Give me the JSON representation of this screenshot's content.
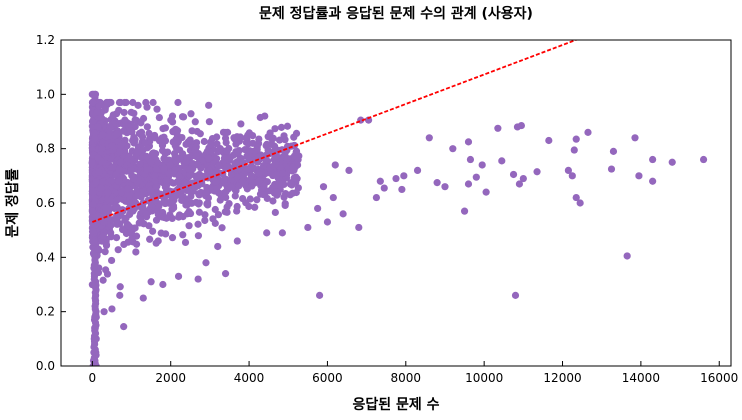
{
  "chart_data": {
    "type": "scatter",
    "title": "문제 정답률과 응답된 문제 수의 관계 (사용자)",
    "xlabel": "응답된 문제 수",
    "ylabel": "문제 정답률",
    "xlim": [
      -800,
      16300
    ],
    "ylim": [
      0.0,
      1.2
    ],
    "xticks": [
      0,
      2000,
      4000,
      6000,
      8000,
      10000,
      12000,
      14000,
      16000
    ],
    "yticks": [
      0.0,
      0.2,
      0.4,
      0.6,
      0.8,
      1.0,
      1.2
    ],
    "ytick_labels": [
      "0.0",
      "0.2",
      "0.4",
      "0.6",
      "0.8",
      "1.0",
      "1.2"
    ],
    "grid": false,
    "colors": {
      "points": "#9467bd",
      "trendline": "#ff0000"
    },
    "trendline": {
      "style": "dashed",
      "intercept": 0.53,
      "slope": 5.43e-05
    },
    "points_dense_region": {
      "x_range": [
        0,
        5500
      ],
      "y_range": [
        0.0,
        1.0
      ]
    },
    "points": [
      [
        5800,
        0.26
      ],
      [
        10800,
        0.26
      ],
      [
        13650,
        0.405
      ],
      [
        800,
        0.145
      ],
      [
        4400,
        0.92
      ],
      [
        6850,
        0.905
      ],
      [
        7050,
        0.905
      ],
      [
        10850,
        0.88
      ],
      [
        10950,
        0.885
      ],
      [
        10350,
        0.875
      ],
      [
        12650,
        0.86
      ],
      [
        13850,
        0.84
      ],
      [
        12350,
        0.835
      ],
      [
        8600,
        0.84
      ],
      [
        9200,
        0.8
      ],
      [
        9600,
        0.825
      ],
      [
        11650,
        0.83
      ],
      [
        13300,
        0.79
      ],
      [
        12300,
        0.795
      ],
      [
        14800,
        0.75
      ],
      [
        15600,
        0.76
      ],
      [
        14300,
        0.76
      ],
      [
        13950,
        0.7
      ],
      [
        14300,
        0.68
      ],
      [
        13250,
        0.725
      ],
      [
        12250,
        0.7
      ],
      [
        12150,
        0.72
      ],
      [
        11350,
        0.715
      ],
      [
        11000,
        0.69
      ],
      [
        10900,
        0.67
      ],
      [
        10750,
        0.705
      ],
      [
        10450,
        0.755
      ],
      [
        9950,
        0.74
      ],
      [
        9650,
        0.76
      ],
      [
        9800,
        0.695
      ],
      [
        10050,
        0.64
      ],
      [
        9600,
        0.67
      ],
      [
        9500,
        0.57
      ],
      [
        9000,
        0.66
      ],
      [
        8800,
        0.675
      ],
      [
        8300,
        0.72
      ],
      [
        7950,
        0.7
      ],
      [
        7900,
        0.65
      ],
      [
        7750,
        0.69
      ],
      [
        7450,
        0.655
      ],
      [
        7350,
        0.68
      ],
      [
        7250,
        0.62
      ],
      [
        12350,
        0.62
      ],
      [
        12450,
        0.6
      ],
      [
        6550,
        0.72
      ],
      [
        6400,
        0.56
      ],
      [
        6150,
        0.62
      ],
      [
        6200,
        0.74
      ],
      [
        5900,
        0.66
      ],
      [
        5750,
        0.58
      ],
      [
        6800,
        0.51
      ],
      [
        6000,
        0.53
      ],
      [
        5500,
        0.51
      ],
      [
        4850,
        0.49
      ],
      [
        4450,
        0.49
      ],
      [
        3700,
        0.46
      ],
      [
        3200,
        0.44
      ],
      [
        2900,
        0.38
      ],
      [
        3400,
        0.34
      ],
      [
        2700,
        0.32
      ],
      [
        2200,
        0.33
      ],
      [
        1800,
        0.3
      ],
      [
        1500,
        0.31
      ],
      [
        1300,
        0.25
      ],
      [
        700,
        0.26
      ],
      [
        500,
        0.21
      ],
      [
        300,
        0.2
      ],
      [
        100,
        0.18
      ],
      [
        50,
        0.1
      ],
      [
        40,
        0.05
      ],
      [
        30,
        0.02
      ],
      [
        20,
        0.0
      ],
      [
        60,
        0.14
      ],
      [
        0,
        1.0
      ],
      [
        80,
        1.0
      ],
      [
        30,
        1.0
      ]
    ]
  }
}
